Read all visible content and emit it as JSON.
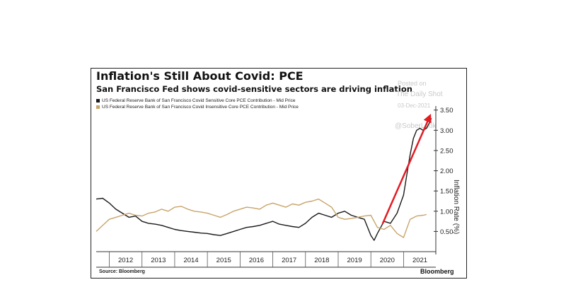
{
  "header": {
    "title": "Inflation's Still About Covid: PCE",
    "subtitle": "San Francisco Fed shows covid-sensitive sectors are driving inflation"
  },
  "legend": [
    {
      "label": "US Federal Reserve Bank of San Francisco Covid Sensitive Core PCE Contribution - Mid Price",
      "color": "#1a1a1a"
    },
    {
      "label": "US Federal Reserve Bank of San Francisco Covid Insensitive Core PCE Contribution - Mid Price",
      "color": "#c8a46a"
    }
  ],
  "footer": {
    "source": "Source: Bloomberg",
    "brand": "Bloomberg"
  },
  "watermark": {
    "line1": "Posted on",
    "line2": "The Daily Shot",
    "line3": "03-Dec-2021",
    "line4": "@SoberLook"
  },
  "colors": {
    "sensitive": "#1a1a1a",
    "insensitive": "#c8a46a",
    "arrow": "#e31b23"
  },
  "chart_data": {
    "type": "line",
    "title": "Inflation's Still About Covid: PCE",
    "subtitle": "San Francisco Fed shows covid-sensitive sectors are driving inflation",
    "ylabel": "Inflation Rate (%)",
    "xlabel": "",
    "ylim": [
      0,
      3.6
    ],
    "y_ticks": [
      "0.50",
      "1.00",
      "1.50",
      "2.00",
      "2.50",
      "3.00",
      "3.50"
    ],
    "x_ticks": [
      "2012",
      "2013",
      "2014",
      "2015",
      "2016",
      "2017",
      "2018",
      "2019",
      "2020",
      "2021"
    ],
    "y_axis_side": "right",
    "grid": false,
    "legend_position": "top-left",
    "annotation": "red arrow pointing to the recent surge",
    "series": [
      {
        "name": "US Federal Reserve Bank of San Francisco Covid Sensitive Core PCE Contribution - Mid Price",
        "x": [
          2011.6,
          2011.8,
          2012.0,
          2012.2,
          2012.4,
          2012.6,
          2012.8,
          2013.0,
          2013.2,
          2013.4,
          2013.6,
          2013.8,
          2014.0,
          2014.2,
          2014.4,
          2014.6,
          2014.8,
          2015.0,
          2015.2,
          2015.4,
          2015.6,
          2015.8,
          2016.0,
          2016.2,
          2016.4,
          2016.6,
          2016.8,
          2017.0,
          2017.2,
          2017.4,
          2017.6,
          2017.8,
          2018.0,
          2018.2,
          2018.4,
          2018.6,
          2018.8,
          2019.0,
          2019.2,
          2019.4,
          2019.6,
          2019.8,
          2020.0,
          2020.1,
          2020.2,
          2020.3,
          2020.4,
          2020.6,
          2020.8,
          2021.0,
          2021.1,
          2021.2,
          2021.3,
          2021.4,
          2021.5,
          2021.6,
          2021.7,
          2021.8,
          2021.85
        ],
        "y": [
          1.3,
          1.32,
          1.2,
          1.05,
          0.95,
          0.85,
          0.88,
          0.75,
          0.7,
          0.68,
          0.65,
          0.6,
          0.55,
          0.52,
          0.5,
          0.48,
          0.46,
          0.45,
          0.42,
          0.4,
          0.45,
          0.5,
          0.55,
          0.6,
          0.62,
          0.65,
          0.7,
          0.75,
          0.68,
          0.65,
          0.62,
          0.6,
          0.7,
          0.85,
          0.95,
          0.9,
          0.85,
          0.95,
          1.0,
          0.9,
          0.85,
          0.8,
          0.4,
          0.28,
          0.45,
          0.6,
          0.75,
          0.7,
          0.95,
          1.4,
          1.9,
          2.4,
          2.8,
          3.0,
          3.05,
          3.0,
          3.05,
          3.2,
          3.3
        ]
      },
      {
        "name": "US Federal Reserve Bank of San Francisco Covid Insensitive Core PCE Contribution - Mid Price",
        "x": [
          2011.6,
          2011.8,
          2012.0,
          2012.2,
          2012.4,
          2012.6,
          2012.8,
          2013.0,
          2013.2,
          2013.4,
          2013.6,
          2013.8,
          2014.0,
          2014.2,
          2014.4,
          2014.6,
          2014.8,
          2015.0,
          2015.2,
          2015.4,
          2015.6,
          2015.8,
          2016.0,
          2016.2,
          2016.4,
          2016.6,
          2016.8,
          2017.0,
          2017.2,
          2017.4,
          2017.6,
          2017.8,
          2018.0,
          2018.2,
          2018.4,
          2018.6,
          2018.8,
          2019.0,
          2019.2,
          2019.4,
          2019.6,
          2019.8,
          2020.0,
          2020.2,
          2020.4,
          2020.6,
          2020.8,
          2021.0,
          2021.2,
          2021.4,
          2021.6,
          2021.7
        ],
        "y": [
          0.5,
          0.65,
          0.8,
          0.85,
          0.9,
          0.95,
          0.9,
          0.88,
          0.95,
          0.98,
          1.05,
          1.0,
          1.1,
          1.12,
          1.05,
          1.0,
          0.98,
          0.95,
          0.9,
          0.85,
          0.92,
          1.0,
          1.05,
          1.1,
          1.08,
          1.05,
          1.15,
          1.2,
          1.15,
          1.1,
          1.18,
          1.15,
          1.22,
          1.25,
          1.3,
          1.2,
          1.1,
          0.85,
          0.8,
          0.82,
          0.85,
          0.88,
          0.9,
          0.6,
          0.55,
          0.65,
          0.45,
          0.35,
          0.8,
          0.88,
          0.9,
          0.92
        ]
      }
    ]
  }
}
